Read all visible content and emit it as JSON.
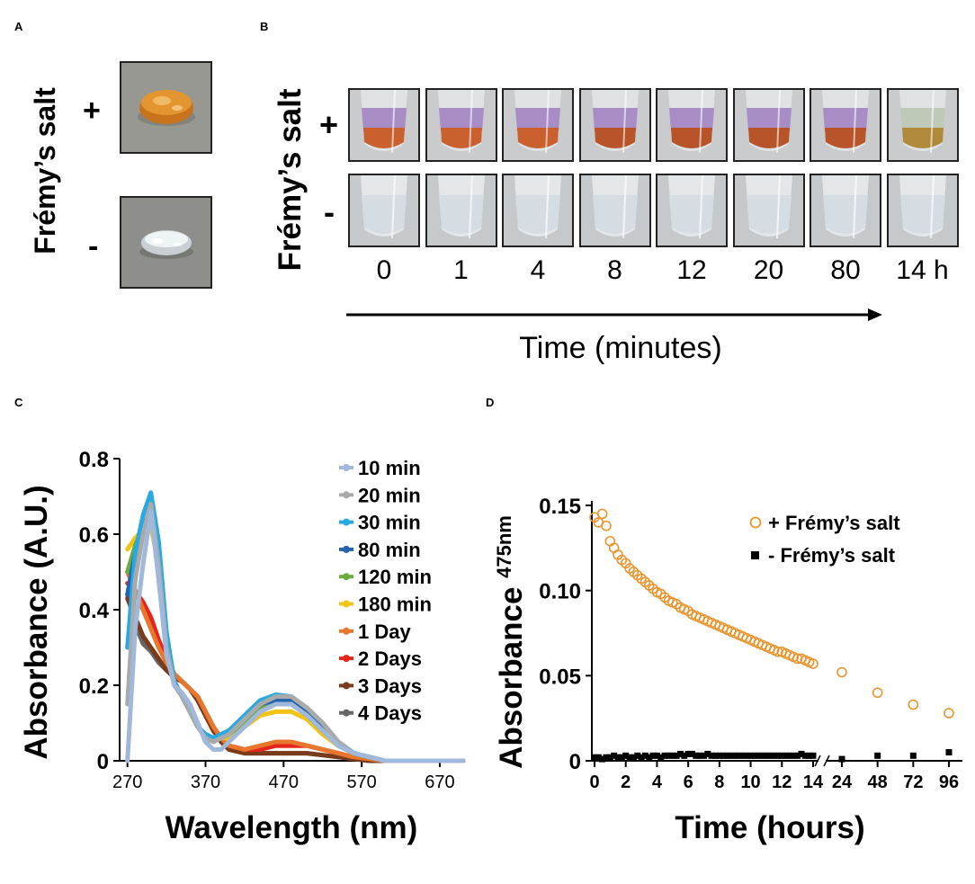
{
  "panels": {
    "a": {
      "letter": "A",
      "ylabel": "Frémy’s salt",
      "plus": "+",
      "minus": "-"
    },
    "b": {
      "letter": "B",
      "ylabel": "Frémy’s salt",
      "plus": "+",
      "minus": "-",
      "time_labels": [
        "0",
        "1",
        "4",
        "8",
        "12",
        "20",
        "80",
        "14 h"
      ],
      "xlabel": "Time (minutes)"
    },
    "c": {
      "letter": "C"
    },
    "d": {
      "letter": "D"
    }
  },
  "colors": {
    "plus_gel": "#d98a2e",
    "minus_gel": "#dfe6ea",
    "purple": "#9a7bbf",
    "orange_marker": "#e9952f"
  },
  "chart_data": [
    {
      "type": "line",
      "panel": "C",
      "title": "",
      "xlabel": "Wavelength (nm)",
      "ylabel": "Absorbance (A.U.)",
      "xlim": [
        260,
        700
      ],
      "ylim": [
        0,
        0.8
      ],
      "xticks": [
        "270",
        "370",
        "470",
        "570",
        "670"
      ],
      "yticks": [
        "0",
        "0.2",
        "0.4",
        "0.6",
        "0.8"
      ],
      "legend_position": "right",
      "series": [
        {
          "name": "10 min",
          "color": "#9fb8dc",
          "x": [
            270,
            280,
            290,
            300,
            310,
            320,
            330,
            340,
            350,
            360,
            370,
            380,
            390,
            400,
            420,
            440,
            460,
            480,
            500,
            520,
            540,
            560,
            580,
            600,
            620,
            650,
            700
          ],
          "values": [
            0,
            0.35,
            0.52,
            0.66,
            0.48,
            0.28,
            0.2,
            0.18,
            0.15,
            0.1,
            0.05,
            0.03,
            0.03,
            0.05,
            0.09,
            0.13,
            0.15,
            0.15,
            0.12,
            0.08,
            0.04,
            0.02,
            0.01,
            0,
            0,
            0,
            0
          ]
        },
        {
          "name": "20 min",
          "color": "#aaaaaa",
          "x": [
            270,
            280,
            290,
            300,
            310,
            320,
            330,
            340,
            350,
            360,
            370,
            380,
            390,
            400,
            420,
            440,
            460,
            480,
            500,
            520,
            540,
            560,
            580,
            600,
            620,
            650,
            700
          ],
          "values": [
            0.15,
            0.48,
            0.6,
            0.68,
            0.52,
            0.3,
            0.2,
            0.17,
            0.13,
            0.09,
            0.06,
            0.05,
            0.06,
            0.07,
            0.11,
            0.15,
            0.17,
            0.17,
            0.14,
            0.1,
            0.05,
            0.02,
            0.01,
            0,
            0,
            0,
            0
          ]
        },
        {
          "name": "30 min",
          "color": "#29a9e1",
          "x": [
            270,
            280,
            290,
            300,
            310,
            320,
            330,
            340,
            350,
            360,
            370,
            380,
            390,
            400,
            420,
            440,
            460,
            480,
            500,
            520,
            540,
            560,
            580,
            600,
            620,
            650,
            700
          ],
          "values": [
            0.3,
            0.55,
            0.65,
            0.71,
            0.58,
            0.34,
            0.21,
            0.17,
            0.13,
            0.09,
            0.07,
            0.06,
            0.07,
            0.08,
            0.12,
            0.16,
            0.175,
            0.17,
            0.14,
            0.1,
            0.05,
            0.02,
            0.01,
            0,
            0,
            0,
            0
          ]
        },
        {
          "name": "80 min",
          "color": "#2563ae",
          "x": [
            270,
            280,
            290,
            300,
            310,
            320,
            330,
            340,
            350,
            360,
            370,
            380,
            390,
            400,
            420,
            440,
            460,
            480,
            500,
            520,
            540,
            560,
            580,
            600,
            620,
            650,
            700
          ],
          "values": [
            0.44,
            0.55,
            0.62,
            0.66,
            0.55,
            0.33,
            0.21,
            0.17,
            0.13,
            0.09,
            0.07,
            0.06,
            0.07,
            0.08,
            0.11,
            0.15,
            0.16,
            0.16,
            0.13,
            0.09,
            0.05,
            0.02,
            0.01,
            0,
            0,
            0,
            0
          ]
        },
        {
          "name": "120 min",
          "color": "#6aad3c",
          "x": [
            270,
            280,
            290,
            300,
            310,
            320,
            330,
            340,
            350,
            360,
            370,
            380,
            390,
            400,
            420,
            440,
            460,
            480,
            500,
            520,
            540,
            560,
            580,
            600,
            620,
            650,
            700
          ],
          "values": [
            0.5,
            0.57,
            0.62,
            0.64,
            0.53,
            0.33,
            0.21,
            0.17,
            0.13,
            0.09,
            0.07,
            0.06,
            0.06,
            0.07,
            0.1,
            0.14,
            0.15,
            0.15,
            0.12,
            0.08,
            0.04,
            0.02,
            0.01,
            0,
            0,
            0,
            0
          ]
        },
        {
          "name": "180 min",
          "color": "#f2c418",
          "x": [
            270,
            280,
            290,
            300,
            310,
            320,
            330,
            340,
            350,
            360,
            370,
            380,
            390,
            400,
            420,
            440,
            460,
            480,
            500,
            520,
            540,
            560,
            580,
            600,
            620,
            650,
            700
          ],
          "values": [
            0.56,
            0.59,
            0.61,
            0.62,
            0.52,
            0.33,
            0.21,
            0.17,
            0.13,
            0.09,
            0.07,
            0.06,
            0.06,
            0.06,
            0.09,
            0.12,
            0.13,
            0.13,
            0.11,
            0.07,
            0.04,
            0.02,
            0.01,
            0,
            0,
            0,
            0
          ]
        },
        {
          "name": "1 Day",
          "color": "#e8772e",
          "x": [
            270,
            280,
            290,
            300,
            310,
            320,
            330,
            340,
            350,
            360,
            370,
            380,
            390,
            400,
            420,
            440,
            460,
            480,
            500,
            520,
            540,
            560,
            580,
            600,
            620,
            650,
            700
          ],
          "values": [
            0.5,
            0.45,
            0.4,
            0.35,
            0.3,
            0.26,
            0.23,
            0.21,
            0.19,
            0.17,
            0.13,
            0.09,
            0.06,
            0.04,
            0.03,
            0.04,
            0.05,
            0.05,
            0.04,
            0.03,
            0.02,
            0.01,
            0.005,
            0,
            0,
            0,
            0
          ]
        },
        {
          "name": "2 Days",
          "color": "#e5261f",
          "x": [
            270,
            280,
            290,
            300,
            310,
            320,
            330,
            340,
            350,
            360,
            370,
            380,
            390,
            400,
            420,
            440,
            460,
            480,
            500,
            520,
            540,
            560,
            580,
            600,
            620,
            650,
            700
          ],
          "values": [
            0.47,
            0.45,
            0.42,
            0.38,
            0.32,
            0.27,
            0.23,
            0.21,
            0.19,
            0.17,
            0.13,
            0.09,
            0.06,
            0.04,
            0.03,
            0.03,
            0.04,
            0.04,
            0.04,
            0.03,
            0.02,
            0.01,
            0.005,
            0,
            0,
            0,
            0
          ]
        },
        {
          "name": "3 Days",
          "color": "#7a3b1a",
          "x": [
            270,
            280,
            290,
            300,
            310,
            320,
            330,
            340,
            350,
            360,
            370,
            380,
            390,
            400,
            420,
            440,
            460,
            480,
            500,
            520,
            540,
            560,
            580,
            600,
            620,
            650,
            700
          ],
          "values": [
            0.43,
            0.38,
            0.33,
            0.3,
            0.27,
            0.24,
            0.22,
            0.21,
            0.19,
            0.16,
            0.12,
            0.08,
            0.05,
            0.03,
            0.02,
            0.02,
            0.02,
            0.02,
            0.02,
            0.015,
            0.01,
            0.005,
            0,
            0,
            0,
            0,
            0
          ]
        },
        {
          "name": "4 Days",
          "color": "#666666",
          "x": [
            270,
            280,
            290,
            300,
            310,
            320,
            330,
            340,
            350,
            360,
            370,
            380,
            390,
            400,
            420,
            440,
            460,
            480,
            500,
            520,
            540,
            560,
            580,
            600,
            620,
            650,
            700
          ],
          "values": [
            0.44,
            0.36,
            0.31,
            0.29,
            0.26,
            0.24,
            0.22,
            0.21,
            0.19,
            0.16,
            0.12,
            0.08,
            0.05,
            0.03,
            0.02,
            0.02,
            0.02,
            0.02,
            0.02,
            0.015,
            0.01,
            0.005,
            0,
            0,
            0,
            0,
            0
          ]
        }
      ]
    },
    {
      "type": "scatter",
      "panel": "D",
      "title": "",
      "xlabel": "Time (hours)",
      "ylabel": "Absorbance",
      "ylabel_sub": "475nm",
      "ylim": [
        0,
        0.15
      ],
      "yticks": [
        "0",
        "0.05",
        "0.10",
        "0.15"
      ],
      "xticks_left": [
        "0",
        "2",
        "4",
        "6",
        "8",
        "10",
        "12",
        "14"
      ],
      "xticks_right": [
        "24",
        "48",
        "72",
        "96"
      ],
      "legend_position": "top-right",
      "series": [
        {
          "name": "+ Frémy’s salt",
          "marker": "open-circle",
          "color": "#e9952f",
          "x": [
            0,
            0.25,
            0.5,
            0.75,
            1,
            1.25,
            1.5,
            1.75,
            2,
            2.25,
            2.5,
            2.75,
            3,
            3.25,
            3.5,
            3.75,
            4,
            4.25,
            4.5,
            4.75,
            5,
            5.25,
            5.5,
            5.75,
            6,
            6.25,
            6.5,
            6.75,
            7,
            7.25,
            7.5,
            7.75,
            8,
            8.25,
            8.5,
            8.75,
            9,
            9.25,
            9.5,
            9.75,
            10,
            10.25,
            10.5,
            10.75,
            11,
            11.25,
            11.5,
            11.75,
            12,
            12.25,
            12.5,
            12.75,
            13,
            13.25,
            13.5,
            13.75,
            14,
            24,
            48,
            72,
            96
          ],
          "values": [
            0.143,
            0.14,
            0.145,
            0.138,
            0.129,
            0.125,
            0.121,
            0.118,
            0.116,
            0.113,
            0.111,
            0.109,
            0.107,
            0.105,
            0.103,
            0.101,
            0.099,
            0.098,
            0.096,
            0.094,
            0.093,
            0.092,
            0.09,
            0.089,
            0.088,
            0.086,
            0.085,
            0.084,
            0.083,
            0.082,
            0.081,
            0.08,
            0.079,
            0.078,
            0.077,
            0.076,
            0.075,
            0.074,
            0.073,
            0.072,
            0.071,
            0.07,
            0.069,
            0.068,
            0.067,
            0.066,
            0.065,
            0.064,
            0.064,
            0.063,
            0.062,
            0.061,
            0.06,
            0.06,
            0.059,
            0.058,
            0.057,
            0.052,
            0.04,
            0.033,
            0.028
          ]
        },
        {
          "name": "- Frémy’s salt",
          "marker": "filled-square",
          "color": "#000000",
          "x": [
            0,
            0.25,
            0.5,
            0.75,
            1,
            1.25,
            1.5,
            1.75,
            2,
            2.25,
            2.5,
            2.75,
            3,
            3.25,
            3.5,
            3.75,
            4,
            4.25,
            4.5,
            4.75,
            5,
            5.25,
            5.5,
            5.75,
            6,
            6.25,
            6.5,
            6.75,
            7,
            7.25,
            7.5,
            7.75,
            8,
            8.25,
            8.5,
            8.75,
            9,
            9.25,
            9.5,
            9.75,
            10,
            10.25,
            10.5,
            10.75,
            11,
            11.25,
            11.5,
            11.75,
            12,
            12.25,
            12.5,
            12.75,
            13,
            13.25,
            13.5,
            13.75,
            14,
            24,
            48,
            72,
            96
          ],
          "values": [
            0.002,
            0.002,
            0.001,
            0.002,
            0.002,
            0.003,
            0.002,
            0.002,
            0.003,
            0.002,
            0.002,
            0.003,
            0.002,
            0.003,
            0.002,
            0.003,
            0.003,
            0.002,
            0.003,
            0.003,
            0.003,
            0.003,
            0.004,
            0.003,
            0.004,
            0.004,
            0.003,
            0.003,
            0.003,
            0.004,
            0.003,
            0.003,
            0.003,
            0.003,
            0.003,
            0.003,
            0.003,
            0.003,
            0.003,
            0.003,
            0.003,
            0.003,
            0.003,
            0.003,
            0.003,
            0.003,
            0.003,
            0.003,
            0.003,
            0.003,
            0.003,
            0.003,
            0.003,
            0.004,
            0.003,
            0.003,
            0.003,
            0.001,
            0.003,
            0.003,
            0.005
          ]
        }
      ]
    }
  ]
}
